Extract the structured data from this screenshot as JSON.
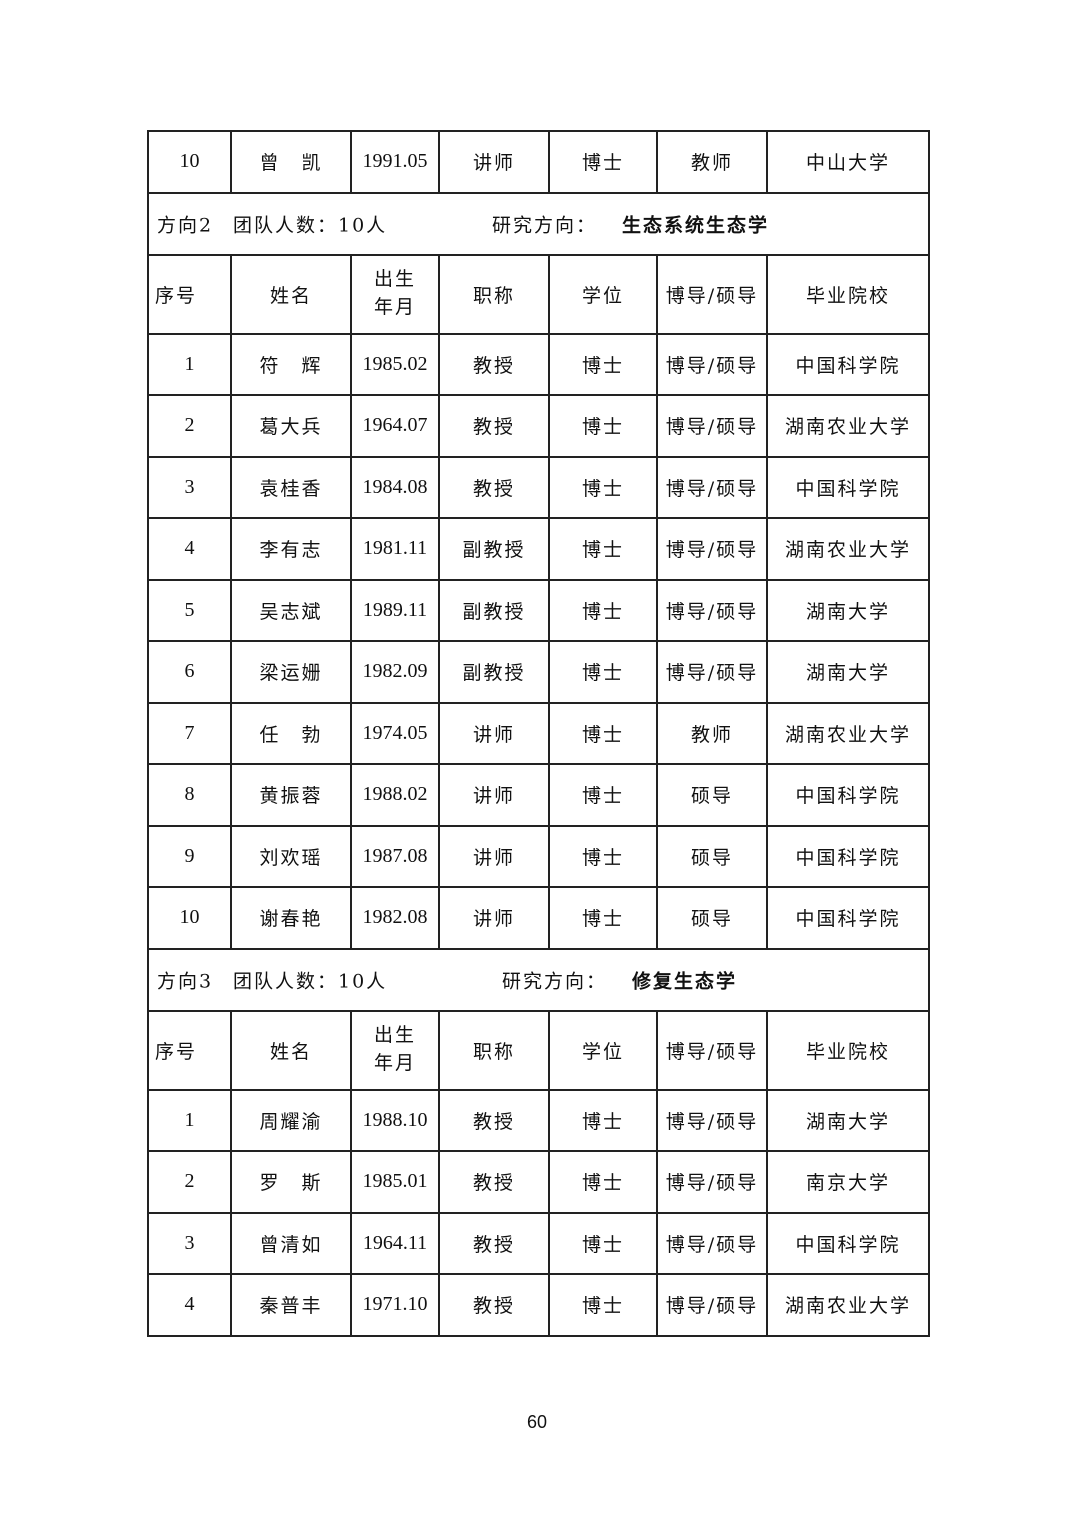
{
  "table": {
    "header": [
      "序号",
      "姓名",
      "出生年月",
      "职称",
      "学位",
      "博导/硕导",
      "毕业院校"
    ],
    "carryover_rows": [
      [
        "10",
        "曾　凯",
        "1991.05",
        "讲师",
        "博士",
        "教师",
        "中山大学"
      ]
    ],
    "sections": [
      {
        "direction": "方向2",
        "team_size": "团队人数：10人",
        "research_label": "研究方向：",
        "research_field": "生态系统生态学",
        "rows": [
          [
            "1",
            "符　辉",
            "1985.02",
            "教授",
            "博士",
            "博导/硕导",
            "中国科学院"
          ],
          [
            "2",
            "葛大兵",
            "1964.07",
            "教授",
            "博士",
            "博导/硕导",
            "湖南农业大学"
          ],
          [
            "3",
            "袁桂香",
            "1984.08",
            "教授",
            "博士",
            "博导/硕导",
            "中国科学院"
          ],
          [
            "4",
            "李有志",
            "1981.11",
            "副教授",
            "博士",
            "博导/硕导",
            "湖南农业大学"
          ],
          [
            "5",
            "吴志斌",
            "1989.11",
            "副教授",
            "博士",
            "博导/硕导",
            "湖南大学"
          ],
          [
            "6",
            "梁运姗",
            "1982.09",
            "副教授",
            "博士",
            "博导/硕导",
            "湖南大学"
          ],
          [
            "7",
            "任　勃",
            "1974.05",
            "讲师",
            "博士",
            "教师",
            "湖南农业大学"
          ],
          [
            "8",
            "黄振蓉",
            "1988.02",
            "讲师",
            "博士",
            "硕导",
            "中国科学院"
          ],
          [
            "9",
            "刘欢瑶",
            "1987.08",
            "讲师",
            "博士",
            "硕导",
            "中国科学院"
          ],
          [
            "10",
            "谢春艳",
            "1982.08",
            "讲师",
            "博士",
            "硕导",
            "中国科学院"
          ]
        ]
      },
      {
        "direction": "方向3",
        "team_size": "团队人数：10人",
        "research_label": "研究方向：",
        "research_field": "修复生态学",
        "rows": [
          [
            "1",
            "周耀渝",
            "1988.10",
            "教授",
            "博士",
            "博导/硕导",
            "湖南大学"
          ],
          [
            "2",
            "罗　斯",
            "1985.01",
            "教授",
            "博士",
            "博导/硕导",
            "南京大学"
          ],
          [
            "3",
            "曾清如",
            "1964.11",
            "教授",
            "博士",
            "博导/硕导",
            "中国科学院"
          ],
          [
            "4",
            "秦普丰",
            "1971.10",
            "教授",
            "博士",
            "博导/硕导",
            "湖南农业大学"
          ]
        ]
      }
    ]
  },
  "page_number": "60"
}
